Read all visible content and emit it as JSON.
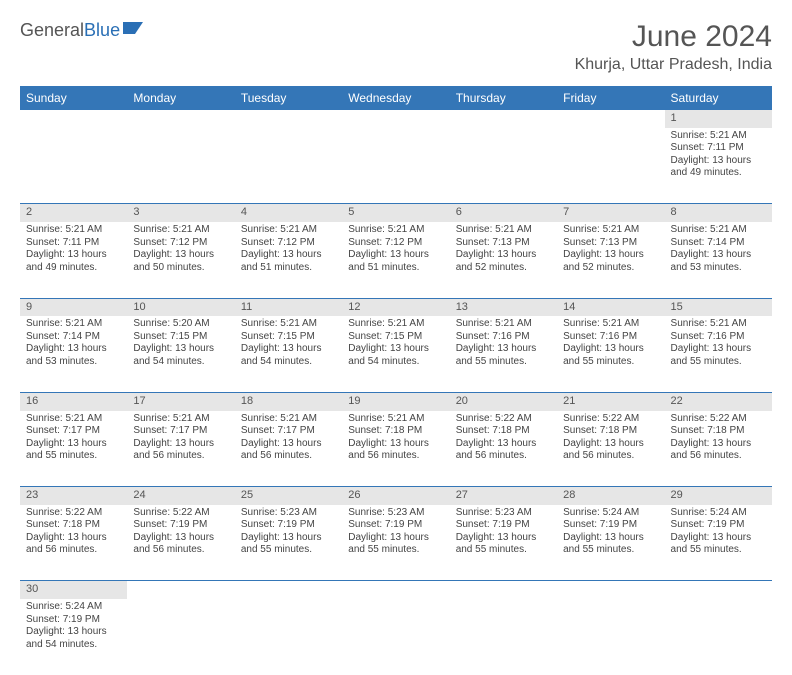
{
  "logo": {
    "text1": "General",
    "text2": "Blue"
  },
  "title": "June 2024",
  "location": "Khurja, Uttar Pradesh, India",
  "colors": {
    "header_bg": "#3476b7",
    "header_fg": "#ffffff",
    "daynum_bg": "#e6e6e6",
    "rule": "#3476b7",
    "text": "#444444",
    "title": "#555555"
  },
  "weekdays": [
    "Sunday",
    "Monday",
    "Tuesday",
    "Wednesday",
    "Thursday",
    "Friday",
    "Saturday"
  ],
  "weeks": [
    [
      null,
      null,
      null,
      null,
      null,
      null,
      {
        "n": "1",
        "sr": "5:21 AM",
        "ss": "7:11 PM",
        "dl": "13 hours and 49 minutes."
      }
    ],
    [
      {
        "n": "2",
        "sr": "5:21 AM",
        "ss": "7:11 PM",
        "dl": "13 hours and 49 minutes."
      },
      {
        "n": "3",
        "sr": "5:21 AM",
        "ss": "7:12 PM",
        "dl": "13 hours and 50 minutes."
      },
      {
        "n": "4",
        "sr": "5:21 AM",
        "ss": "7:12 PM",
        "dl": "13 hours and 51 minutes."
      },
      {
        "n": "5",
        "sr": "5:21 AM",
        "ss": "7:12 PM",
        "dl": "13 hours and 51 minutes."
      },
      {
        "n": "6",
        "sr": "5:21 AM",
        "ss": "7:13 PM",
        "dl": "13 hours and 52 minutes."
      },
      {
        "n": "7",
        "sr": "5:21 AM",
        "ss": "7:13 PM",
        "dl": "13 hours and 52 minutes."
      },
      {
        "n": "8",
        "sr": "5:21 AM",
        "ss": "7:14 PM",
        "dl": "13 hours and 53 minutes."
      }
    ],
    [
      {
        "n": "9",
        "sr": "5:21 AM",
        "ss": "7:14 PM",
        "dl": "13 hours and 53 minutes."
      },
      {
        "n": "10",
        "sr": "5:20 AM",
        "ss": "7:15 PM",
        "dl": "13 hours and 54 minutes."
      },
      {
        "n": "11",
        "sr": "5:21 AM",
        "ss": "7:15 PM",
        "dl": "13 hours and 54 minutes."
      },
      {
        "n": "12",
        "sr": "5:21 AM",
        "ss": "7:15 PM",
        "dl": "13 hours and 54 minutes."
      },
      {
        "n": "13",
        "sr": "5:21 AM",
        "ss": "7:16 PM",
        "dl": "13 hours and 55 minutes."
      },
      {
        "n": "14",
        "sr": "5:21 AM",
        "ss": "7:16 PM",
        "dl": "13 hours and 55 minutes."
      },
      {
        "n": "15",
        "sr": "5:21 AM",
        "ss": "7:16 PM",
        "dl": "13 hours and 55 minutes."
      }
    ],
    [
      {
        "n": "16",
        "sr": "5:21 AM",
        "ss": "7:17 PM",
        "dl": "13 hours and 55 minutes."
      },
      {
        "n": "17",
        "sr": "5:21 AM",
        "ss": "7:17 PM",
        "dl": "13 hours and 56 minutes."
      },
      {
        "n": "18",
        "sr": "5:21 AM",
        "ss": "7:17 PM",
        "dl": "13 hours and 56 minutes."
      },
      {
        "n": "19",
        "sr": "5:21 AM",
        "ss": "7:18 PM",
        "dl": "13 hours and 56 minutes."
      },
      {
        "n": "20",
        "sr": "5:22 AM",
        "ss": "7:18 PM",
        "dl": "13 hours and 56 minutes."
      },
      {
        "n": "21",
        "sr": "5:22 AM",
        "ss": "7:18 PM",
        "dl": "13 hours and 56 minutes."
      },
      {
        "n": "22",
        "sr": "5:22 AM",
        "ss": "7:18 PM",
        "dl": "13 hours and 56 minutes."
      }
    ],
    [
      {
        "n": "23",
        "sr": "5:22 AM",
        "ss": "7:18 PM",
        "dl": "13 hours and 56 minutes."
      },
      {
        "n": "24",
        "sr": "5:22 AM",
        "ss": "7:19 PM",
        "dl": "13 hours and 56 minutes."
      },
      {
        "n": "25",
        "sr": "5:23 AM",
        "ss": "7:19 PM",
        "dl": "13 hours and 55 minutes."
      },
      {
        "n": "26",
        "sr": "5:23 AM",
        "ss": "7:19 PM",
        "dl": "13 hours and 55 minutes."
      },
      {
        "n": "27",
        "sr": "5:23 AM",
        "ss": "7:19 PM",
        "dl": "13 hours and 55 minutes."
      },
      {
        "n": "28",
        "sr": "5:24 AM",
        "ss": "7:19 PM",
        "dl": "13 hours and 55 minutes."
      },
      {
        "n": "29",
        "sr": "5:24 AM",
        "ss": "7:19 PM",
        "dl": "13 hours and 55 minutes."
      }
    ],
    [
      {
        "n": "30",
        "sr": "5:24 AM",
        "ss": "7:19 PM",
        "dl": "13 hours and 54 minutes."
      },
      null,
      null,
      null,
      null,
      null,
      null
    ]
  ],
  "labels": {
    "sunrise": "Sunrise: ",
    "sunset": "Sunset: ",
    "daylight": "Daylight: "
  }
}
